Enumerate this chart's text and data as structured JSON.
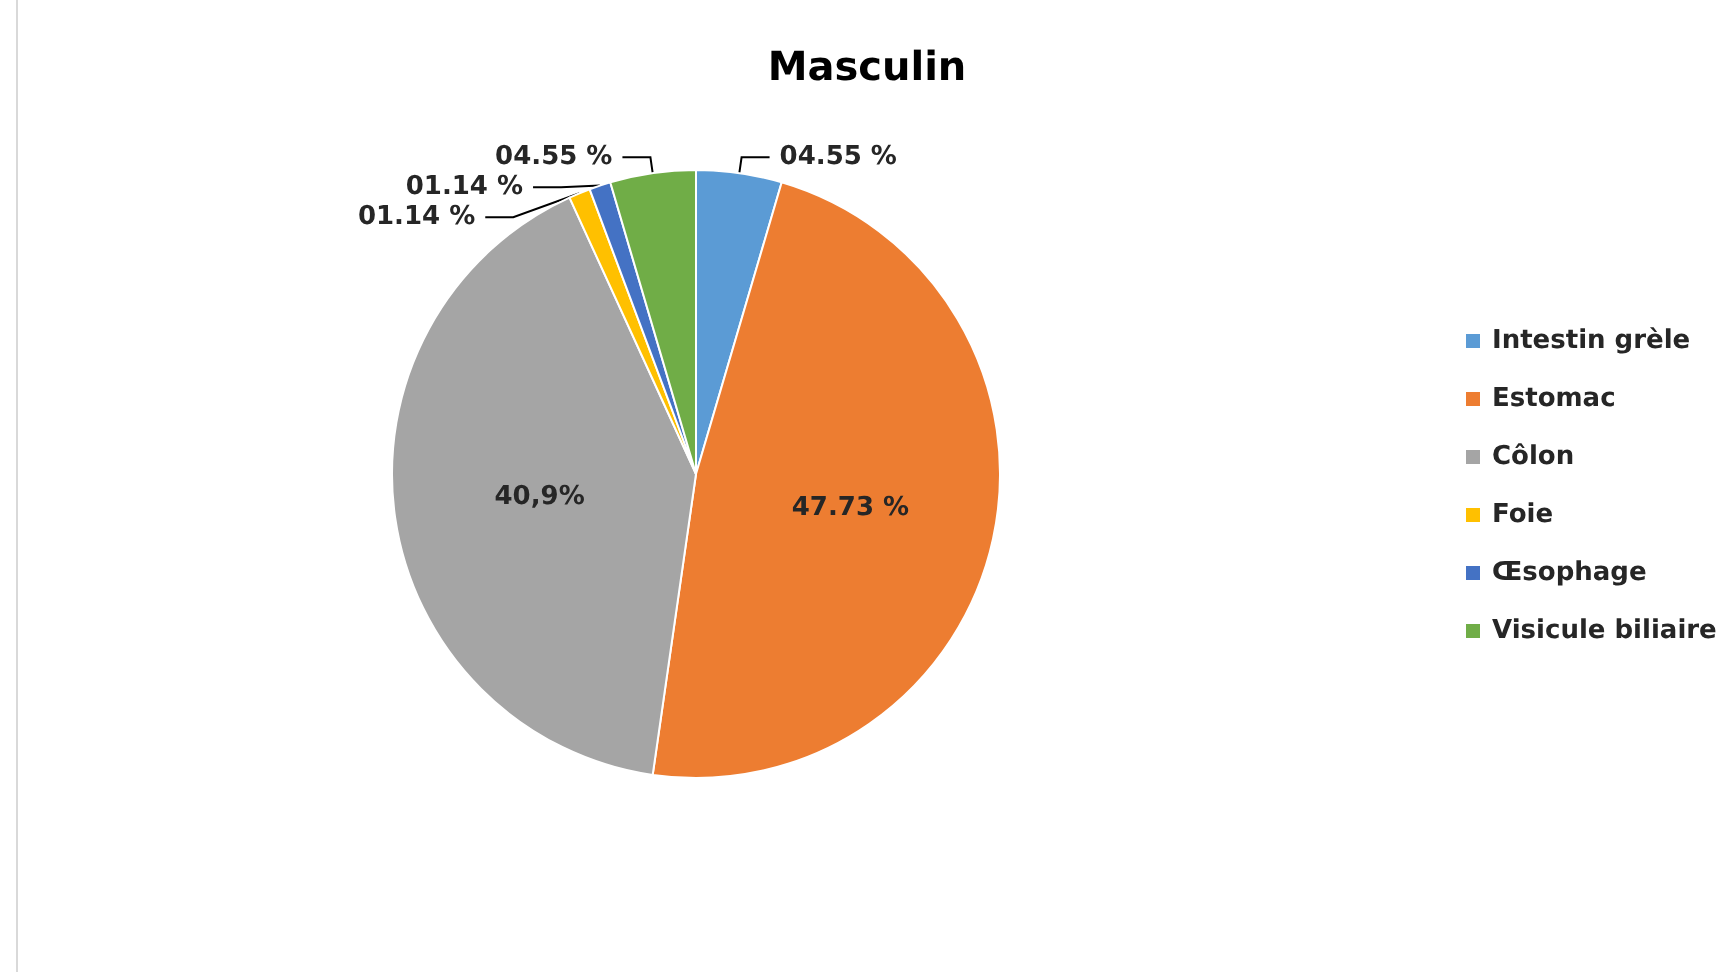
{
  "chart_data": {
    "type": "pie",
    "title": "Masculin",
    "categories": [
      "Intestin grèle",
      "Estomac",
      "Côlon",
      "Foie",
      "Œsophage",
      "Visicule biliaire"
    ],
    "values": [
      4.55,
      47.73,
      40.9,
      1.14,
      1.14,
      4.55
    ],
    "colors": [
      "#5b9bd5",
      "#ed7d31",
      "#a5a5a5",
      "#ffc000",
      "#4472c4",
      "#70ad47"
    ],
    "value_labels": [
      "04.55 %",
      "47.73 %",
      "40,9%",
      "01.14 %",
      "01.14 %",
      "04.55 %"
    ],
    "legend": "right"
  }
}
